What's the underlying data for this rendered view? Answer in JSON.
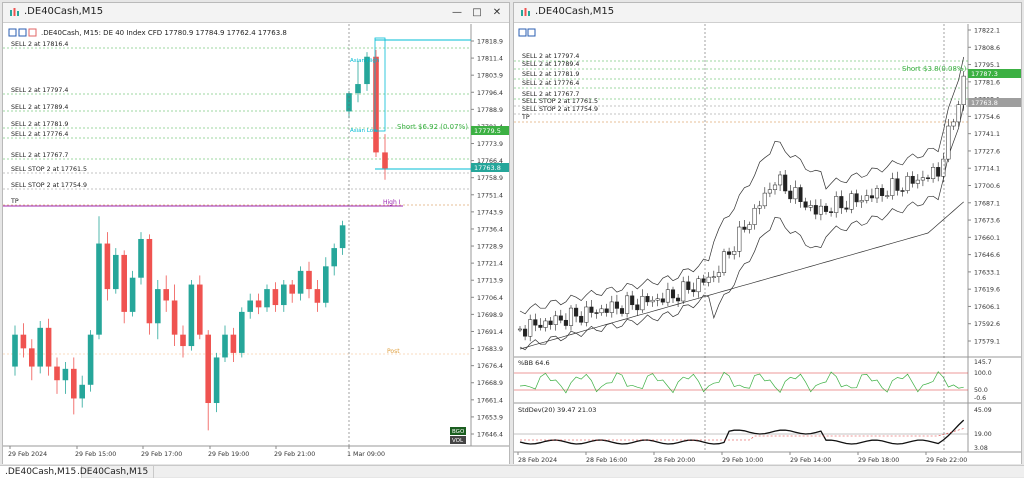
{
  "left_window": {
    "title": ".DE40Cash,M15",
    "header": ".DE40Cash, M15:  DE 40 Index CFD   17780.9  17784.9  17762.4  17763.8",
    "price_axis": [
      "17818.9",
      "17811.4",
      "17803.9",
      "17796.4",
      "17788.9",
      "17781.4",
      "17773.9",
      "17766.4",
      "17758.9",
      "17751.4",
      "17743.9",
      "17736.4",
      "17728.9",
      "17721.4",
      "17713.9",
      "17706.4",
      "17698.9",
      "17691.4",
      "17683.9",
      "17676.4",
      "17668.9",
      "17661.4",
      "17653.9",
      "17646.4"
    ],
    "time_axis": [
      "29 Feb 2024",
      "29 Feb 15:00",
      "29 Feb 17:00",
      "29 Feb 19:00",
      "29 Feb 21:00",
      "1 Mar 09:00"
    ],
    "orders": [
      "SELL 2 at 17816.4",
      "SELL 2 at 17797.4",
      "SELL 2 at 17789.4",
      "SELL 2 at 17781.9",
      "SELL 2 at 17776.4",
      "SELL 2 at 17767.7",
      "SELL STOP 2 at 17761.5",
      "SELL STOP 2 at 17754.9",
      "TP"
    ],
    "short_label": "Short  $6.92 (0.07%)",
    "price_tag_green": "17779.5",
    "price_tag_teal": "17763.8",
    "high_label": "High I",
    "post_label": "Post",
    "asian_high": "Asian High",
    "asian_low": "Asian Low",
    "badge_top": "BGO",
    "badge_bottom": "VOL"
  },
  "right_window": {
    "title": ".DE40Cash,M15",
    "price_axis": [
      "17822.1",
      "17808.6",
      "17795.1",
      "17781.6",
      "17768.1",
      "17754.6",
      "17741.1",
      "17727.6",
      "17714.1",
      "17700.6",
      "17687.1",
      "17673.6",
      "17660.1",
      "17646.6",
      "17633.1",
      "17619.6",
      "17606.1",
      "17592.6",
      "17579.1"
    ],
    "orders": [
      "SELL 2 at 17797.4",
      "SELL 2 at 17789.4",
      "SELL 2 at 17781.9",
      "SELL 2 at 17776.4",
      "SELL 2 at 17767.7",
      "SELL STOP 2 at 17761.5",
      "SELL STOP 2 at 17754.9",
      "TP"
    ],
    "short_label": "Short  $3.8(0.08%)",
    "price_tag_green": "17787.3",
    "price_tag_gray": "17763.8",
    "bb_label": "%BB 64.6",
    "bb_axis": [
      "145.7",
      "100.0",
      "50.0",
      "-0.6"
    ],
    "sd_label": "StdDev(20) 39.47 21.03",
    "sd_axis": [
      "45.09",
      "19.00",
      "3.08"
    ],
    "time_axis": [
      "28 Feb 2024",
      "28 Feb 16:00",
      "28 Feb 20:00",
      "29 Feb 10:00",
      "29 Feb 14:00",
      "29 Feb 18:00",
      "29 Feb 22:00"
    ]
  },
  "tabs": [
    ".DE40Cash,M15",
    ".DE40Cash,M15"
  ],
  "colors": {
    "bull": "#26a69a",
    "bear": "#ef5350",
    "green_line": "#3cb043",
    "cyan": "#00bcd4",
    "purple": "#9c27b0"
  }
}
